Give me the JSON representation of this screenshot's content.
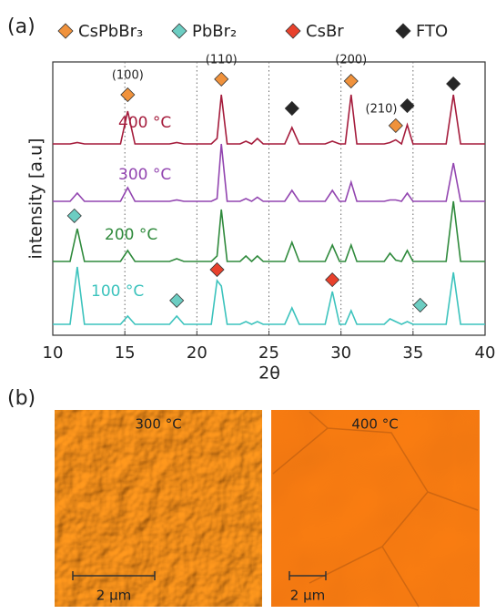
{
  "chart_data": {
    "type": "line",
    "panel_label": "(a)",
    "xlabel": "2θ",
    "ylabel": "intensity [a.u]",
    "xlim": [
      10,
      40
    ],
    "xticks": [
      10,
      15,
      20,
      25,
      30,
      35,
      40
    ],
    "ylim": [
      0,
      100
    ],
    "grid": true,
    "x": [
      10,
      11.2,
      11.7,
      12.2,
      14.7,
      15.2,
      15.7,
      18.1,
      18.6,
      19.1,
      21.0,
      21.4,
      21.7,
      22.1,
      23.0,
      23.4,
      23.8,
      24.2,
      24.6,
      26.1,
      26.6,
      27.1,
      28.9,
      29.4,
      29.9,
      30.3,
      30.7,
      31.1,
      33.0,
      33.4,
      33.8,
      34.2,
      34.6,
      35.0,
      37.3,
      37.8,
      38.3,
      40
    ],
    "series": [
      {
        "name": "400 °C",
        "color": "#a51c3c",
        "values": [
          70,
          70,
          70.5,
          70,
          70,
          82,
          70,
          70,
          70.5,
          70,
          70,
          72,
          88,
          70,
          70,
          71,
          70,
          72,
          70,
          70,
          76,
          70,
          70,
          71,
          70,
          70,
          88,
          70,
          70,
          70.5,
          71.5,
          70,
          77,
          70,
          70,
          88,
          70,
          70
        ]
      },
      {
        "name": "300 °C",
        "color": "#9245b0",
        "values": [
          49,
          49,
          52,
          49,
          49,
          54,
          49,
          49,
          49.5,
          49,
          49,
          50,
          70,
          49,
          49,
          50,
          49,
          50.5,
          49,
          49,
          53,
          49,
          49,
          53,
          49,
          49,
          56,
          49,
          49,
          49.5,
          49.5,
          49,
          52,
          49,
          49,
          63,
          49,
          49
        ]
      },
      {
        "name": "200 °C",
        "color": "#2f8a3c",
        "values": [
          27,
          27,
          39,
          27,
          27,
          31,
          27,
          27,
          28,
          27,
          27,
          29,
          46,
          27,
          27,
          29,
          27,
          29,
          27,
          27,
          34,
          27,
          27,
          33,
          27,
          27,
          33,
          27,
          27,
          30,
          27.5,
          27,
          31,
          27,
          27,
          49,
          27,
          27
        ]
      },
      {
        "name": "100 °C",
        "color": "#3cc3bd",
        "values": [
          4,
          4,
          25,
          4,
          4,
          7,
          4,
          4,
          7,
          4,
          4,
          20,
          18,
          4,
          4,
          5,
          4,
          5,
          4,
          4,
          10,
          4,
          4,
          16,
          4,
          4,
          9,
          4,
          4,
          6,
          5,
          4,
          5,
          4,
          4,
          23,
          4,
          4
        ]
      }
    ],
    "phases": [
      {
        "name": "CsPbBr₃",
        "color": "#f0923c",
        "x": [
          15.2,
          21.7,
          30.7,
          33.8
        ],
        "y": [
          88,
          93.7,
          93,
          76.7
        ]
      },
      {
        "name": "PbBr₂",
        "color": "#6ccdc2",
        "x": [
          11.5,
          18.6,
          35.5
        ],
        "y": [
          43.7,
          12.7,
          11
        ]
      },
      {
        "name": "CsBr",
        "color": "#e8412c",
        "x": [
          21.4,
          29.4
        ],
        "y": [
          24,
          20.3
        ]
      },
      {
        "name": "FTO",
        "color": "#262626",
        "x": [
          26.6,
          34.6,
          37.8
        ],
        "y": [
          83,
          84,
          92
        ]
      }
    ],
    "annotations": [
      {
        "text": "(100)",
        "x": 15.2,
        "y": 95
      },
      {
        "text": "(110)",
        "x": 21.7,
        "y": 100.7
      },
      {
        "text": "(200)",
        "x": 30.7,
        "y": 100.7
      },
      {
        "text": "(210)",
        "x": 32.8,
        "y": 82.7
      }
    ]
  },
  "afm": {
    "panel_label": "(b)",
    "images": [
      {
        "label": "300 °C",
        "scale_label": "2 µm"
      },
      {
        "label": "400 °C",
        "scale_label": "2 µm"
      }
    ]
  }
}
